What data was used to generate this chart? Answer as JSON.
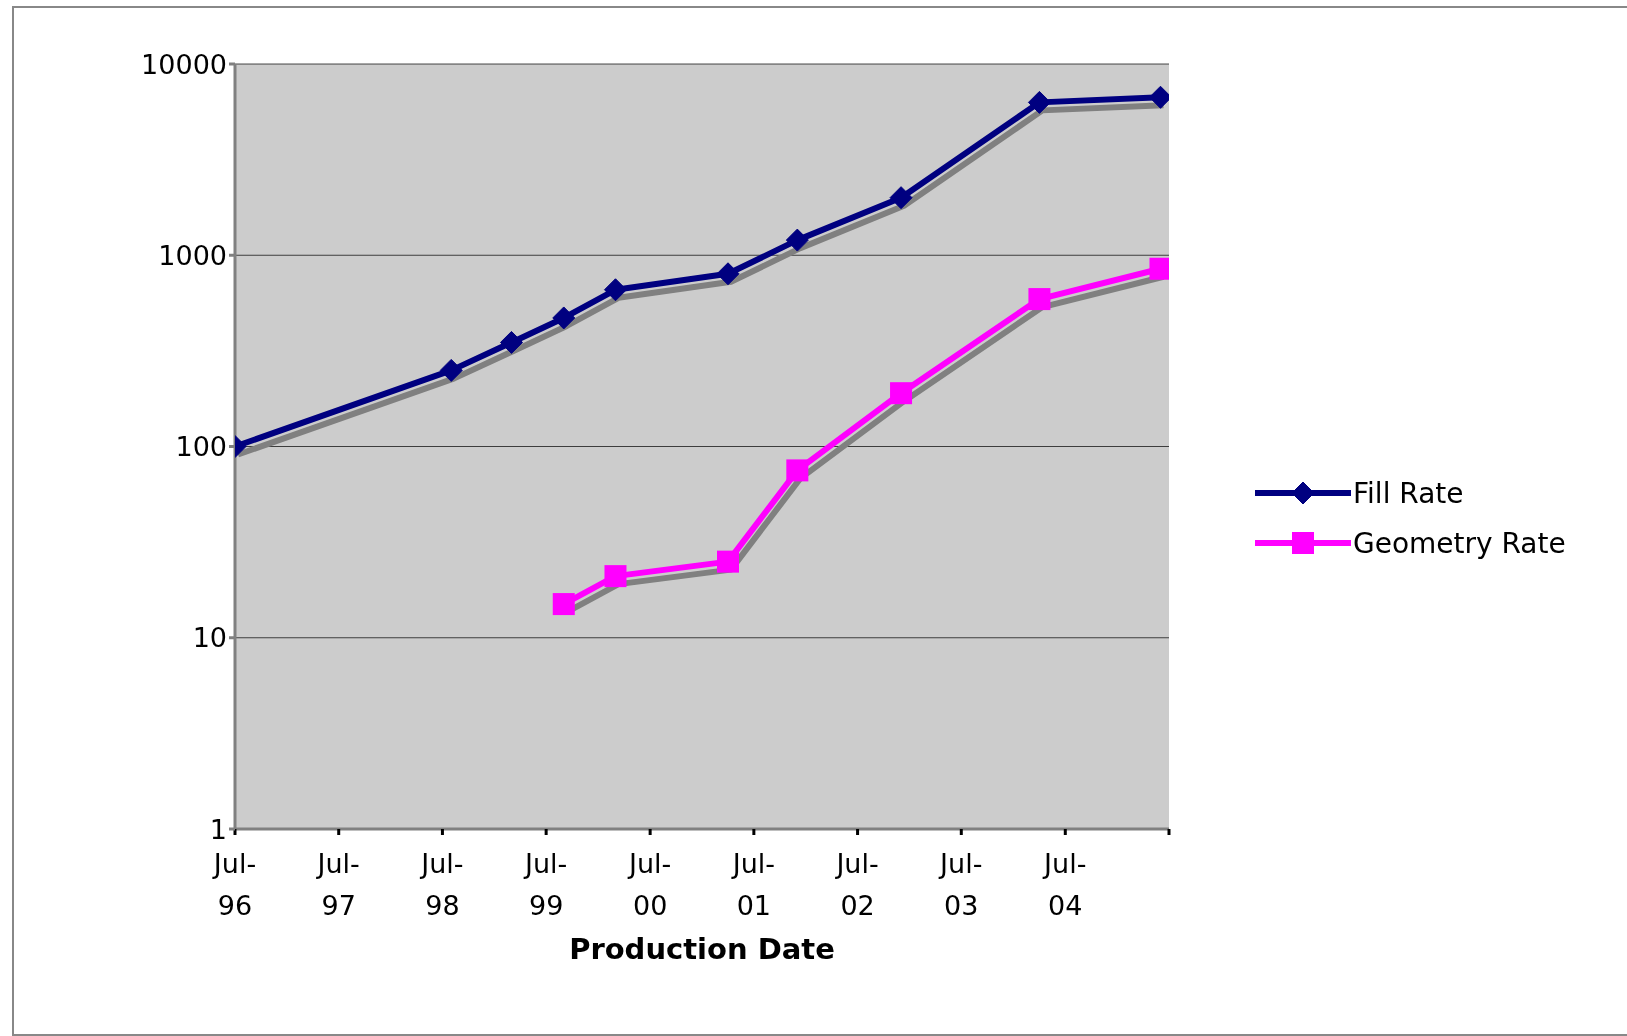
{
  "chart_data": {
    "type": "line",
    "xlabel": "Production Date",
    "log": "y",
    "grid": "y",
    "legend": "right",
    "xlim": [
      "1996-07",
      "2005-07"
    ],
    "xticks": [
      {
        "value": "1996-07",
        "label": "Jul-96"
      },
      {
        "value": "1997-07",
        "label": "Jul-97"
      },
      {
        "value": "1998-07",
        "label": "Jul-98"
      },
      {
        "value": "1999-07",
        "label": "Jul-99"
      },
      {
        "value": "2000-07",
        "label": "Jul-00"
      },
      {
        "value": "2001-07",
        "label": "Jul-01"
      },
      {
        "value": "2002-07",
        "label": "Jul-02"
      },
      {
        "value": "2003-07",
        "label": "Jul-03"
      },
      {
        "value": "2004-07",
        "label": "Jul-04"
      },
      {
        "value": "2005-07",
        "label": null
      }
    ],
    "ylim": [
      1,
      10000
    ],
    "yticks": [
      1,
      10,
      100,
      1000,
      10000
    ],
    "series": [
      {
        "name": "Fill Rate",
        "color": "#000080",
        "marker": "diamond",
        "x": [
          "1996-07",
          "1998-08",
          "1999-03",
          "1999-09",
          "2000-03",
          "2001-04",
          "2001-12",
          "2002-12",
          "2004-04",
          "2005-06"
        ],
        "values": [
          100,
          250,
          350,
          470,
          660,
          800,
          1200,
          2000,
          6300,
          6700
        ]
      },
      {
        "name": "Geometry Rate",
        "color": "#ff00ff",
        "marker": "square",
        "x": [
          "1999-09",
          "2000-03",
          "2001-04",
          "2001-12",
          "2002-12",
          "2004-04",
          "2005-06"
        ],
        "values": [
          15,
          21,
          25,
          75,
          190,
          590,
          850
        ]
      }
    ]
  }
}
